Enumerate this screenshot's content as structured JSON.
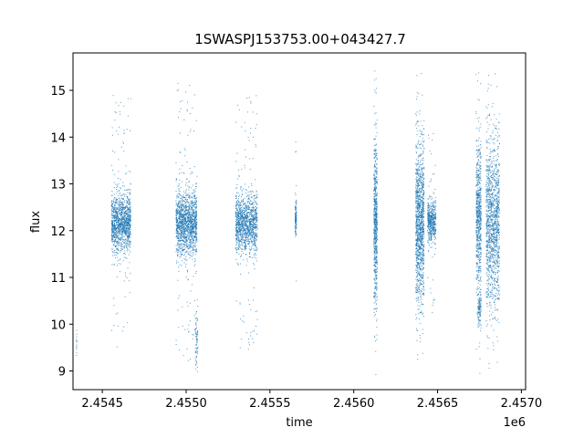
{
  "chart_data": {
    "type": "scatter",
    "title": "1SWASPJ153753.00+043427.7",
    "xlabel": "time",
    "ylabel": "flux",
    "x_offset_label": "1e6",
    "xlim": [
      2454325,
      2457025
    ],
    "ylim": [
      8.6,
      15.8
    ],
    "x_ticks": [
      2454500,
      2455000,
      2455500,
      2456000,
      2456500,
      2457000
    ],
    "x_tick_labels": [
      "2.4545",
      "2.4550",
      "2.4555",
      "2.4560",
      "2.4565",
      "2.4570"
    ],
    "y_ticks": [
      9,
      10,
      11,
      12,
      13,
      14,
      15
    ],
    "y_tick_labels": [
      "9",
      "10",
      "11",
      "12",
      "13",
      "14",
      "15"
    ],
    "grid": false,
    "marker_color": "#1f77b4",
    "series": [
      {
        "clusters": [
          {
            "x_range": [
              2454345,
              2454348
            ],
            "y_center": 9.6,
            "y_spread": 0.35,
            "count": 14
          },
          {
            "x_range": [
              2454555,
              2454670
            ],
            "y_center": 12.15,
            "y_spread": 0.55,
            "count": 1300
          },
          {
            "x_range": [
              2454940,
              2455065
            ],
            "y_center": 12.15,
            "y_spread": 0.6,
            "count": 1500
          },
          {
            "x_range": [
              2455055,
              2455070
            ],
            "y_center": 9.7,
            "y_spread": 0.6,
            "count": 80
          },
          {
            "x_range": [
              2455295,
              2455425
            ],
            "y_center": 12.15,
            "y_spread": 0.55,
            "count": 1300
          },
          {
            "x_range": [
              2455650,
              2455658
            ],
            "y_center": 12.25,
            "y_spread": 0.35,
            "count": 120
          },
          {
            "x_range": [
              2456120,
              2456140
            ],
            "y_center": 12.1,
            "y_spread": 1.6,
            "count": 700
          },
          {
            "x_range": [
              2456370,
              2456420
            ],
            "y_center": 12.2,
            "y_spread": 1.5,
            "count": 1300
          },
          {
            "x_range": [
              2456440,
              2456490
            ],
            "y_center": 12.2,
            "y_spread": 0.4,
            "count": 500
          },
          {
            "x_range": [
              2456730,
              2456760
            ],
            "y_center": 12.3,
            "y_spread": 1.4,
            "count": 700
          },
          {
            "x_range": [
              2456740,
              2456760
            ],
            "y_center": 10.3,
            "y_spread": 0.35,
            "count": 120
          },
          {
            "x_range": [
              2456790,
              2456870
            ],
            "y_center": 12.2,
            "y_spread": 1.6,
            "count": 1400
          }
        ]
      }
    ]
  }
}
